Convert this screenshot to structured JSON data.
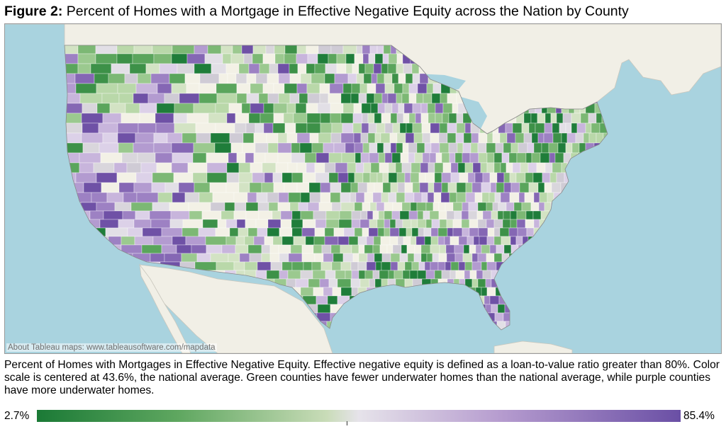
{
  "figure_label": "Figure 2:",
  "title": "Percent of Homes with a Mortgage in Effective Negative Equity across the Nation by County",
  "map": {
    "attribution": "About Tableau maps: www.tableausoftware.com/mapdata",
    "colors": {
      "water": "#a9d3df",
      "land_outside": "#f1efe6",
      "no_data": "#f3f1e6",
      "scale_low": "#1b7a36",
      "scale_center": "#e6e3ea",
      "scale_high": "#6a4fa5"
    }
  },
  "caption": "Percent of Homes with Mortgages in Effective Negative Equity. Effective negative equity is defined as a loan-to-value ratio greater than 80%. Color scale is centered at 43.6%, the national average. Green counties have fewer underwater homes than the national average, while purple counties have more underwater homes.",
  "legend": {
    "min_label": "2.7%",
    "max_label": "85.4%",
    "min_value": 2.7,
    "max_value": 85.4,
    "center_value": 43.6
  }
}
